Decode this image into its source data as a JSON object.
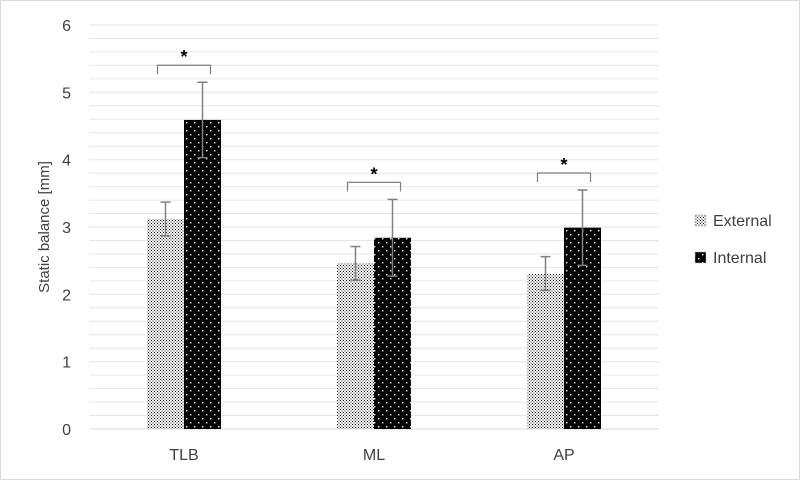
{
  "chart_data": {
    "type": "bar",
    "title": "",
    "xlabel": "",
    "ylabel": "Static balance [mm]",
    "ylim": [
      0,
      6
    ],
    "yticks": [
      0,
      1,
      2,
      3,
      4,
      5,
      6
    ],
    "minor_grid_step": 0.2,
    "grid": true,
    "legend_position": "right",
    "categories": [
      "TLB",
      "ML",
      "AP"
    ],
    "series": [
      {
        "name": "External",
        "pattern": "fine-dots-on-white",
        "values": [
          3.12,
          2.46,
          2.31
        ],
        "errors": [
          0.25,
          0.25,
          0.25
        ]
      },
      {
        "name": "Internal",
        "pattern": "white-dots-on-black",
        "values": [
          4.59,
          2.84,
          2.99
        ],
        "errors": [
          0.56,
          0.57,
          0.56
        ]
      }
    ],
    "annotations": [
      {
        "category": "TLB",
        "text": "*"
      },
      {
        "category": "ML",
        "text": "*"
      },
      {
        "category": "AP",
        "text": "*"
      }
    ],
    "colors": {
      "axis": "#d9d9d9",
      "grid": "#e6e6e6",
      "text": "#404040",
      "error_bar": "#808080",
      "bracket": "#7f7f7f",
      "internal_fill": "#000000"
    }
  }
}
